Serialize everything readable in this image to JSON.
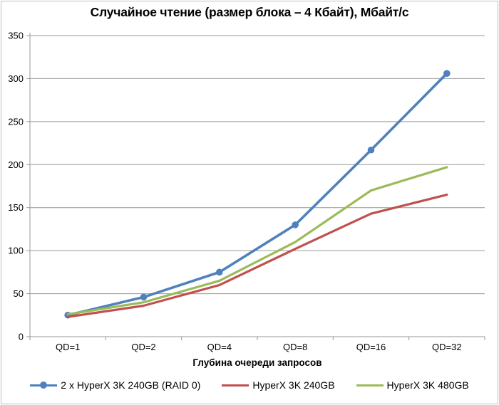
{
  "chart_data": {
    "type": "line",
    "title": "Случайное чтение (размер блока – 4 Кбайт), Мбайт/с",
    "xlabel": "Глубина очереди запросов",
    "ylabel": "",
    "categories": [
      "QD=1",
      "QD=2",
      "QD=4",
      "QD=8",
      "QD=16",
      "QD=32"
    ],
    "ylim": [
      0,
      350
    ],
    "yticks": [
      0,
      50,
      100,
      150,
      200,
      250,
      300,
      350
    ],
    "grid": true,
    "legend_position": "bottom",
    "series": [
      {
        "name": "2 x HyperX 3K 240GB (RAID 0)",
        "color": "#4F81BD",
        "marker": "circle",
        "values": [
          25,
          46,
          75,
          130,
          217,
          306
        ]
      },
      {
        "name": "HyperX 3K 240GB",
        "color": "#C0504D",
        "marker": "none",
        "values": [
          23,
          36,
          60,
          102,
          143,
          165
        ]
      },
      {
        "name": "HyperX 3K 480GB",
        "color": "#9BBB59",
        "marker": "none",
        "values": [
          26,
          40,
          65,
          110,
          170,
          197
        ]
      }
    ]
  },
  "style": {
    "grid_color": "#979797",
    "axis_color": "#979797",
    "frame_color": "#bfbfbf",
    "text_color": "#000000",
    "background": "#ffffff"
  }
}
